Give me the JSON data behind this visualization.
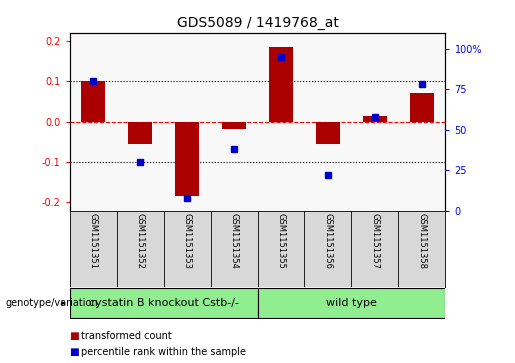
{
  "title": "GDS5089 / 1419768_at",
  "samples": [
    "GSM1151351",
    "GSM1151352",
    "GSM1151353",
    "GSM1151354",
    "GSM1151355",
    "GSM1151356",
    "GSM1151357",
    "GSM1151358"
  ],
  "transformed_count": [
    0.1,
    -0.055,
    -0.185,
    -0.018,
    0.185,
    -0.055,
    0.015,
    0.07
  ],
  "percentile_rank": [
    80,
    30,
    8,
    38,
    95,
    22,
    58,
    78
  ],
  "group1_count": 4,
  "group2_count": 4,
  "group1_label": "cystatin B knockout Cstb-/-",
  "group2_label": "wild type",
  "group1_color": "#90EE90",
  "group2_color": "#90EE90",
  "bar_color": "#AA0000",
  "dot_color": "#0000CC",
  "cell_bg": "#D8D8D8",
  "plot_bg": "#F8F8F8",
  "ylim": [
    -0.22,
    0.22
  ],
  "y2lim": [
    0,
    110
  ],
  "yticks_left": [
    -0.2,
    -0.1,
    0.0,
    0.1,
    0.2
  ],
  "yticks_right": [
    0,
    25,
    50,
    75,
    100
  ],
  "hline_red": 0.0,
  "hline_black1": 0.1,
  "hline_black2": -0.1,
  "bar_width": 0.5,
  "legend_labels": [
    "transformed count",
    "percentile rank within the sample"
  ],
  "legend_colors": [
    "#AA0000",
    "#0000CC"
  ],
  "title_fontsize": 10,
  "tick_fontsize": 7,
  "label_fontsize": 7,
  "group_fontsize": 8
}
